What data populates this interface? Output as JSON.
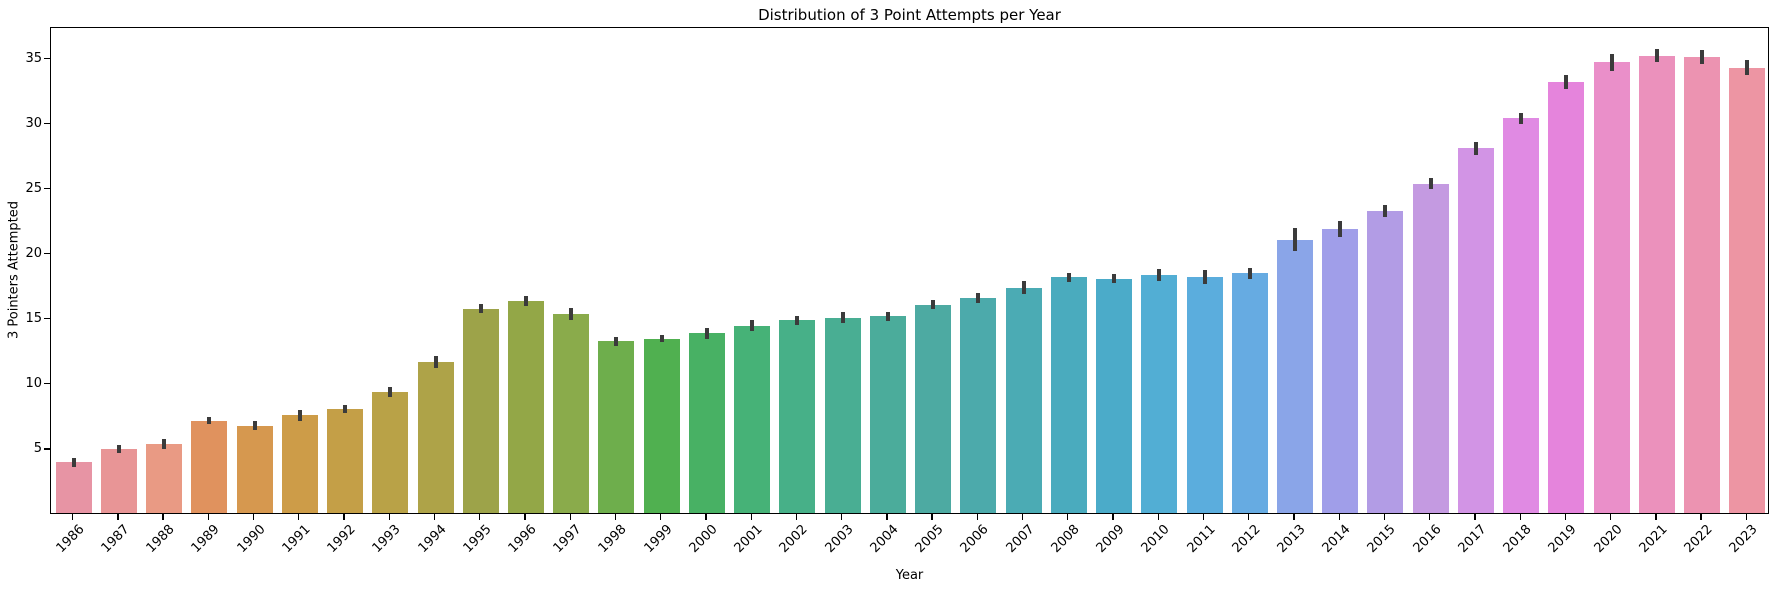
{
  "chart_data": {
    "type": "bar",
    "title": "Distribution of 3 Point Attempts per Year",
    "xlabel": "Year",
    "ylabel": "3 Pointers Attempted",
    "categories": [
      "1986",
      "1987",
      "1988",
      "1989",
      "1990",
      "1991",
      "1992",
      "1993",
      "1994",
      "1995",
      "1996",
      "1997",
      "1998",
      "1999",
      "2000",
      "2001",
      "2002",
      "2003",
      "2004",
      "2005",
      "2006",
      "2007",
      "2008",
      "2009",
      "2010",
      "2011",
      "2012",
      "2013",
      "2014",
      "2015",
      "2016",
      "2017",
      "2018",
      "2019",
      "2020",
      "2021",
      "2022",
      "2023"
    ],
    "values": [
      3.9,
      4.9,
      5.3,
      7.1,
      6.7,
      7.5,
      8.0,
      9.3,
      11.6,
      15.7,
      16.3,
      15.3,
      13.2,
      13.4,
      13.8,
      14.4,
      14.8,
      15.0,
      15.1,
      16.0,
      16.5,
      17.3,
      18.1,
      18.0,
      18.3,
      18.1,
      18.4,
      21.0,
      21.8,
      23.2,
      25.3,
      28.0,
      30.3,
      33.1,
      34.6,
      35.1,
      35.0,
      34.2
    ],
    "errors": [
      0.35,
      0.3,
      0.4,
      0.3,
      0.35,
      0.4,
      0.3,
      0.4,
      0.45,
      0.35,
      0.4,
      0.45,
      0.35,
      0.3,
      0.4,
      0.4,
      0.35,
      0.4,
      0.35,
      0.35,
      0.4,
      0.5,
      0.35,
      0.35,
      0.45,
      0.55,
      0.4,
      0.9,
      0.6,
      0.45,
      0.45,
      0.5,
      0.45,
      0.55,
      0.65,
      0.5,
      0.55,
      0.6
    ],
    "bar_colors": [
      "#e794a4",
      "#e89596",
      "#e99a84",
      "#e0925e",
      "#d6984f",
      "#cd9c48",
      "#c49f47",
      "#b9a247",
      "#aea348",
      "#9da349",
      "#93a747",
      "#8aab4b",
      "#6eae4c",
      "#50b050",
      "#48b164",
      "#46b277",
      "#47b088",
      "#49ae93",
      "#4bac9b",
      "#4daaa2",
      "#4caaab",
      "#4babb4",
      "#4aabbe",
      "#4babc9",
      "#52aed4",
      "#5baddd",
      "#66abe2",
      "#8aa5e8",
      "#a09ee9",
      "#b29ce5",
      "#c49ae1",
      "#d294e5",
      "#e08ae3",
      "#e584dc",
      "#ea8fc9",
      "#eb91bc",
      "#ec93b1",
      "#ed95a3"
    ],
    "yticks": [
      5,
      10,
      15,
      20,
      25,
      30,
      35
    ],
    "ylim": [
      0,
      37.4
    ],
    "error_bar_color": "#3b3b3b",
    "axis_color": "#000000",
    "background_color": "#ffffff",
    "grid": "off",
    "legend": "none"
  }
}
